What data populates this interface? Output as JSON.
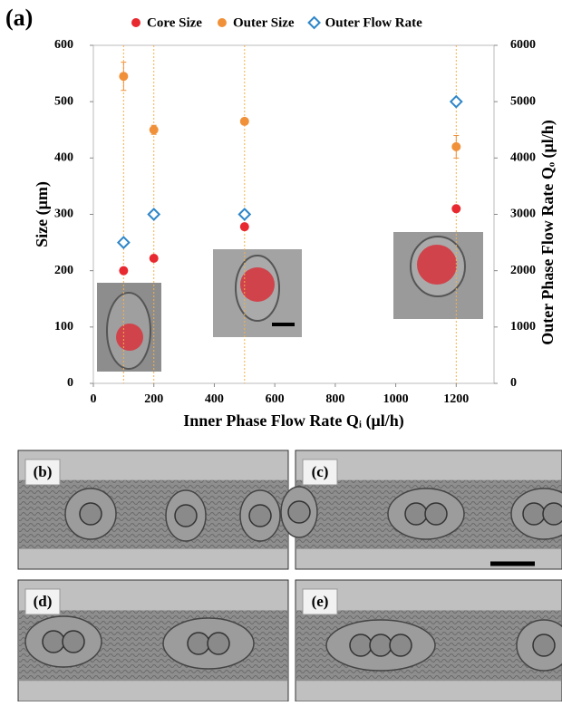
{
  "chart_data": {
    "type": "scatter",
    "panel_label": "(a)",
    "x_label": "Inner Phase Flow Rate Qᵢ (μl/h)",
    "y_label": "Size (μm)",
    "y2_label": "Outer Phase Flow Rate Qₒ (μl/h)",
    "x": [
      100,
      200,
      500,
      1200
    ],
    "series": [
      {
        "name": "Core Size",
        "color": "#e8292f",
        "marker": "circle",
        "values": [
          200,
          222,
          278,
          310
        ]
      },
      {
        "name": "Outer Size",
        "color": "#f0913a",
        "marker": "circle",
        "values": [
          545,
          450,
          465,
          420
        ],
        "errors": [
          25,
          8,
          null,
          20
        ]
      },
      {
        "name": "Outer Flow Rate",
        "color": "#2f86c8",
        "marker": "diamond",
        "axis": "y2",
        "values": [
          2500,
          3000,
          3000,
          5000
        ]
      }
    ],
    "xlim": [
      0,
      1325
    ],
    "xticks": [
      0,
      200,
      400,
      600,
      800,
      1000,
      1200
    ],
    "ylim": [
      0,
      600
    ],
    "yticks": [
      0,
      100,
      200,
      300,
      400,
      500,
      600
    ],
    "y2lim": [
      0,
      6000
    ],
    "y2ticks": [
      0,
      1000,
      2000,
      3000,
      4000,
      5000,
      6000
    ],
    "x_guides": true,
    "grid": false
  },
  "panels": [
    {
      "label": "(b)"
    },
    {
      "label": "(c)"
    },
    {
      "label": "(d)"
    },
    {
      "label": "(e)"
    }
  ]
}
